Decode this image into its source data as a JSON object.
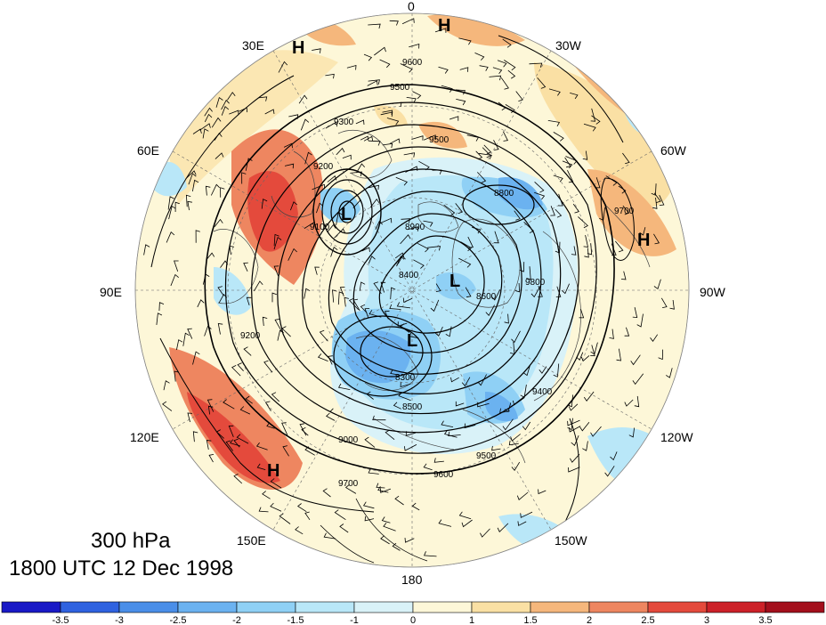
{
  "title": {
    "level": "300 hPa",
    "time": "1800 UTC 12 Dec 1998"
  },
  "meridian_labels": [
    "0",
    "30W",
    "60W",
    "90W",
    "120W",
    "150W",
    "180",
    "150E",
    "120E",
    "90E",
    "60E",
    "30E"
  ],
  "centers": [
    {
      "label": "H",
      "region": "near 0 longitude, north Atlantic / Europe rim"
    },
    {
      "label": "H",
      "region": "30E, Europe"
    },
    {
      "label": "H",
      "region": "60W, north Atlantic"
    },
    {
      "label": "H",
      "region": "150E, north Pacific"
    },
    {
      "label": "L",
      "region": "Scandinavia / Barents"
    },
    {
      "label": "L",
      "region": "Canadian Arctic"
    },
    {
      "label": "L",
      "region": "East Siberia"
    }
  ],
  "contour_labels": [
    "9600",
    "9500",
    "9300",
    "9200",
    "9100",
    "8900",
    "8800",
    "8600",
    "8400",
    "8500",
    "8300",
    "9000",
    "9500",
    "9600",
    "9700",
    "9400",
    "9800",
    "9700",
    "9500",
    "9200"
  ],
  "colorbar": {
    "ticks": [
      "-3.5",
      "-3",
      "-2.5",
      "-2",
      "-1.5",
      "-1",
      "0",
      "1",
      "1.5",
      "2",
      "2.5",
      "3",
      "3.5"
    ],
    "colors": [
      "#1919c6",
      "#2f62e0",
      "#4a8ee8",
      "#6bb2f0",
      "#8fd0f5",
      "#b9e7f8",
      "#d9f2f8",
      "#fdf7d8",
      "#fae0a4",
      "#f5b77c",
      "#ee8660",
      "#e44a3c",
      "#cc2128",
      "#a30f1c"
    ]
  }
}
